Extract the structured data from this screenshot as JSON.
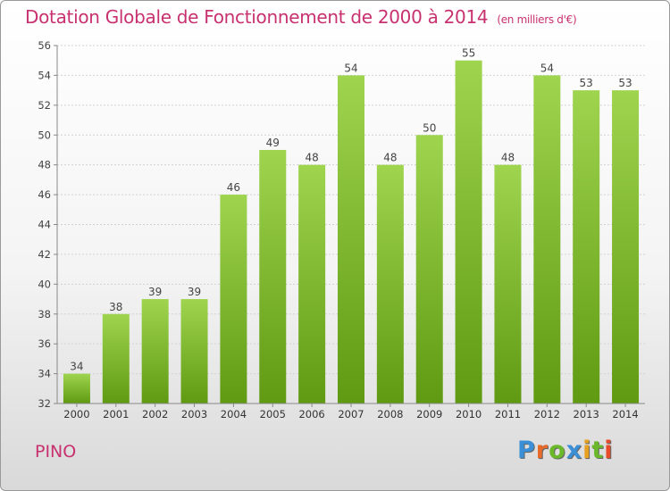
{
  "header": {
    "title": "Dotation Globale de Fonctionnement de 2000 à 2014",
    "subtitle": "(en milliers d'€)"
  },
  "footer": {
    "commune": "PINO",
    "logo_text": "Proxiti"
  },
  "colors": {
    "bar_light": "#9fd44f",
    "bar_dark": "#5f9a12",
    "title": "#c8316f",
    "logo": [
      "#3a8fd6",
      "#e86a2a",
      "#6bb82a",
      "#3a8fd6",
      "#e8a020",
      "#6bb82a",
      "#e84a2a"
    ]
  },
  "chart_data": {
    "type": "bar",
    "title": "Dotation Globale de Fonctionnement de 2000 à 2014",
    "subtitle": "(en milliers d'€)",
    "categories": [
      "2000",
      "2001",
      "2002",
      "2003",
      "2004",
      "2005",
      "2006",
      "2007",
      "2008",
      "2009",
      "2010",
      "2011",
      "2012",
      "2013",
      "2014"
    ],
    "values": [
      34,
      38,
      39,
      39,
      46,
      49,
      48,
      54,
      48,
      50,
      55,
      48,
      54,
      53,
      53
    ],
    "data_labels": [
      "34",
      "38",
      "39",
      "39",
      "46",
      "49",
      "48",
      "54",
      "48",
      "50",
      "55",
      "48",
      "54",
      "53",
      "53"
    ],
    "xlabel": "",
    "ylabel": "",
    "ylim": [
      32,
      56
    ],
    "yticks": [
      32,
      34,
      36,
      38,
      40,
      42,
      44,
      46,
      48,
      50,
      52,
      54,
      56
    ],
    "ytick_labels": [
      "32",
      "34",
      "36",
      "38",
      "40",
      "42",
      "44",
      "46",
      "48",
      "50",
      "52",
      "54",
      "56"
    ],
    "grid": true,
    "legend": "none"
  }
}
